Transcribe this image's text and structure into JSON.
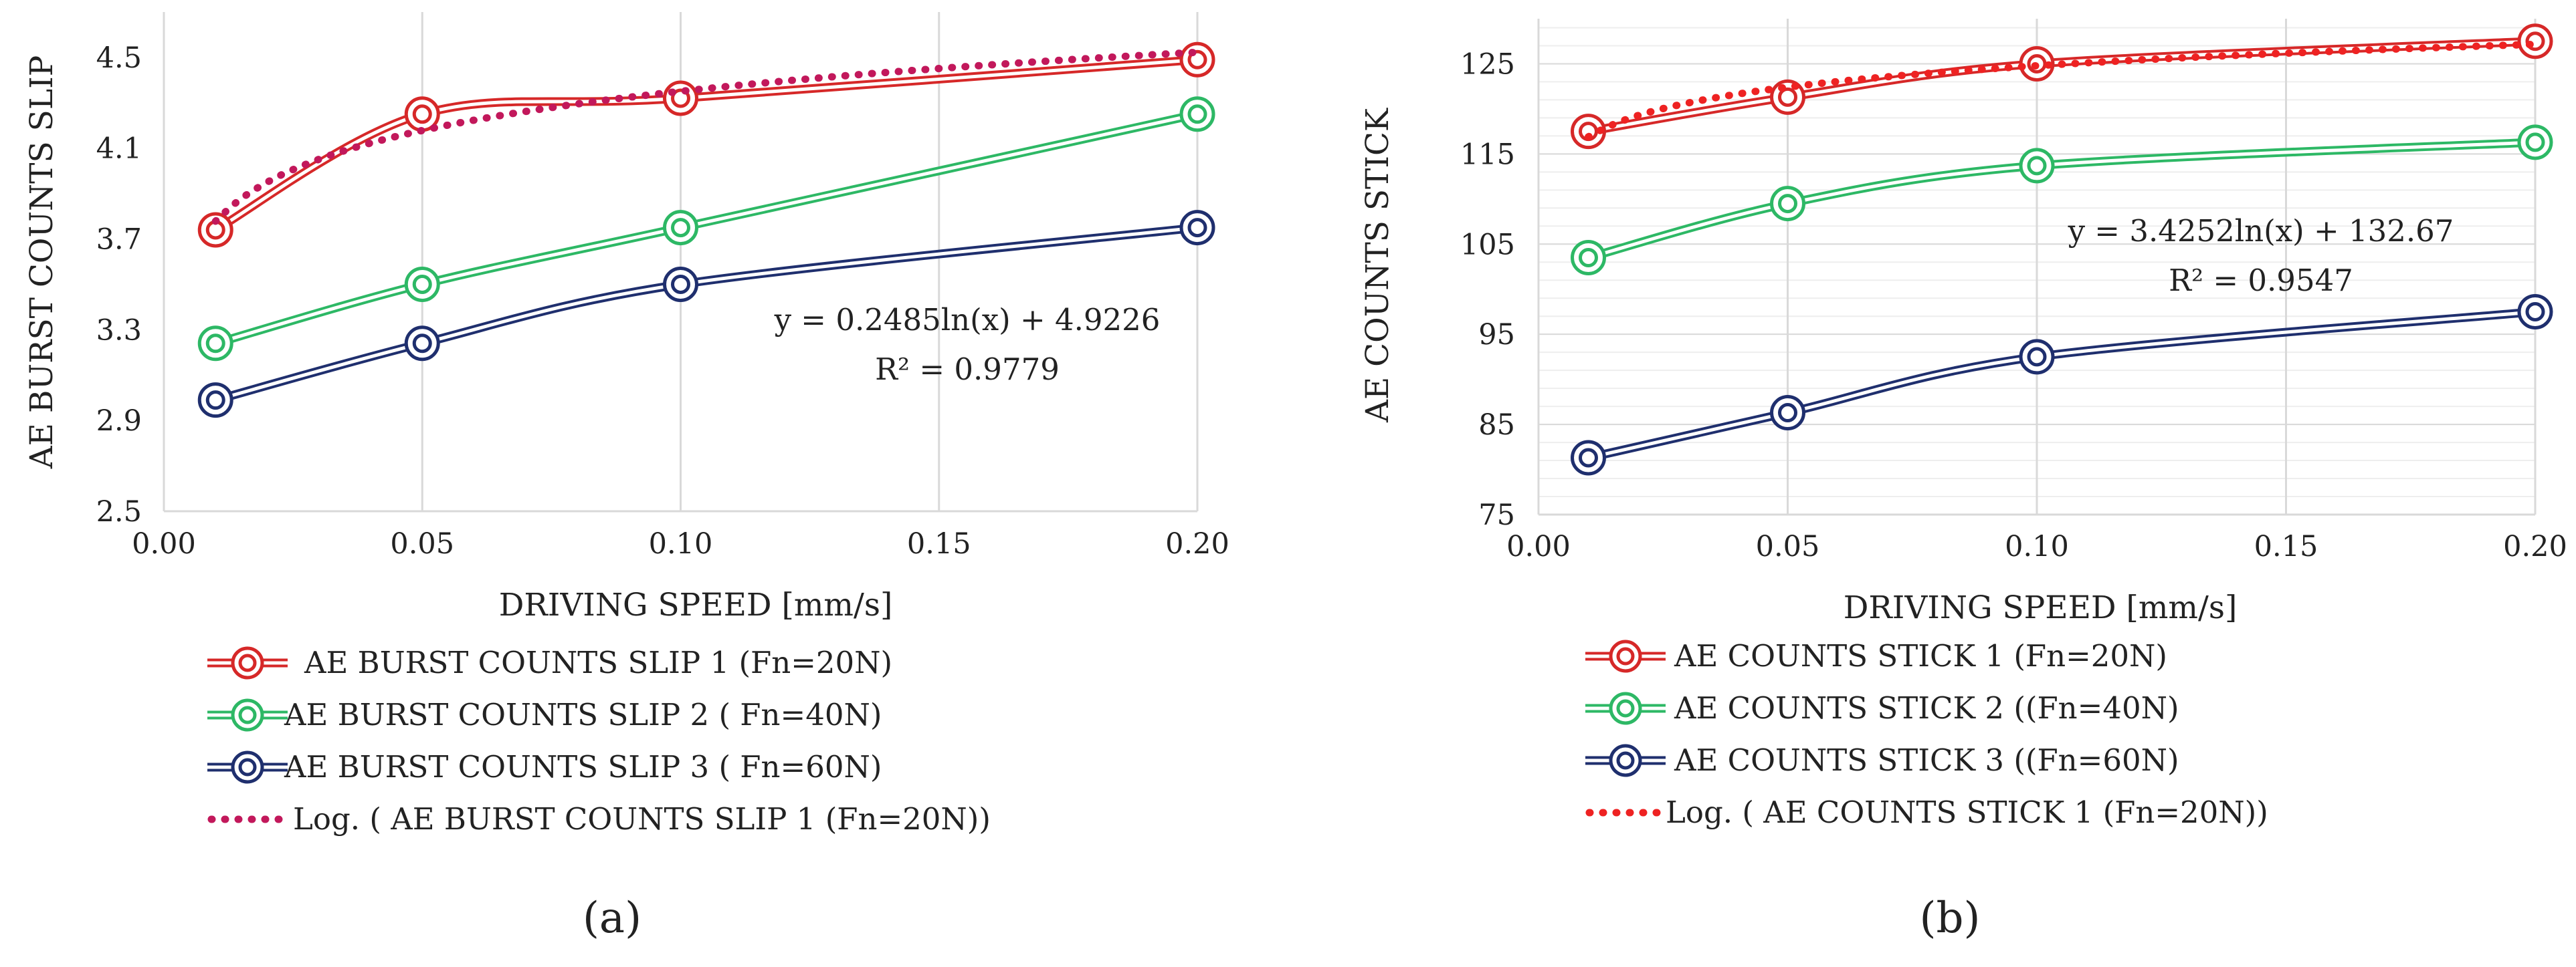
{
  "chart_data": [
    {
      "id": "a",
      "type": "line",
      "caption": "(a)",
      "xlabel": "DRIVING SPEED [mm/s]",
      "ylabel": "AE BURST COUNTS SLIP",
      "xlim": [
        0.0,
        0.2
      ],
      "ylim": [
        2.5,
        4.7
      ],
      "xticks": [
        0.0,
        0.05,
        0.1,
        0.15,
        0.2
      ],
      "xtick_labels": [
        "0.00",
        "0.05",
        "0.10",
        "0.15",
        "0.20"
      ],
      "yticks": [
        2.5,
        2.9,
        3.3,
        3.7,
        4.1,
        4.5
      ],
      "ytick_labels": [
        "2.5",
        "2.9",
        "3.3",
        "3.7",
        "4.1",
        "4.5"
      ],
      "grid": "vertical",
      "minor_grid": false,
      "x": [
        0.01,
        0.05,
        0.1,
        0.2
      ],
      "series": [
        {
          "name": "AE BURST COUNTS SLIP 1 (Fn=20N)",
          "color": "#d62828",
          "values": [
            3.74,
            4.25,
            4.32,
            4.49
          ]
        },
        {
          "name": "AE BURST COUNTS SLIP 2 ( Fn=40N)",
          "color": "#2db865",
          "values": [
            3.24,
            3.5,
            3.75,
            4.25
          ]
        },
        {
          "name": "AE BURST COUNTS SLIP 3 ( Fn=60N)",
          "color": "#1f2f6e",
          "values": [
            2.99,
            3.24,
            3.5,
            3.75
          ]
        }
      ],
      "trendline": {
        "name": "Log. ( AE BURST COUNTS SLIP 1 (Fn=20N))",
        "color": "#c2185b",
        "coef_a": 0.2485,
        "coef_b": 4.9226,
        "equation": "y = 0.2485ln(x) + 4.9226",
        "r2": "R² = 0.9779"
      }
    },
    {
      "id": "b",
      "type": "line",
      "caption": "(b)",
      "xlabel": "DRIVING SPEED [mm/s]",
      "ylabel": "AE  COUNTS  STICK",
      "xlim": [
        0.0,
        0.2
      ],
      "ylim": [
        75,
        130
      ],
      "xticks": [
        0.0,
        0.05,
        0.1,
        0.15,
        0.2
      ],
      "xtick_labels": [
        "0.00",
        "0.05",
        "0.10",
        "0.15",
        "0.20"
      ],
      "yticks": [
        75,
        85,
        95,
        105,
        115,
        125
      ],
      "ytick_labels": [
        "75",
        "85",
        "95",
        "105",
        "115",
        "125"
      ],
      "grid": "both",
      "minor_grid": true,
      "x": [
        0.01,
        0.05,
        0.1,
        0.2
      ],
      "series": [
        {
          "name": "AE COUNTS STICK 1 (Fn=20N)",
          "color": "#d62828",
          "values": [
            117.5,
            121.3,
            125.0,
            127.5
          ]
        },
        {
          "name": "AE COUNTS STICK 2 ((Fn=40N)",
          "color": "#2db865",
          "values": [
            103.5,
            109.5,
            113.7,
            116.3
          ]
        },
        {
          "name": "AE COUNTS STICK 3 ((Fn=60N)",
          "color": "#1f2f6e",
          "values": [
            81.3,
            86.3,
            92.5,
            97.5
          ]
        }
      ],
      "trendline": {
        "name": "Log. ( AE COUNTS STICK 1 (Fn=20N))",
        "color": "#ee2222",
        "coef_a": 3.4252,
        "coef_b": 132.67,
        "equation": "y = 3.4252ln(x) + 132.67",
        "r2": "R² = 0.9547"
      }
    }
  ]
}
